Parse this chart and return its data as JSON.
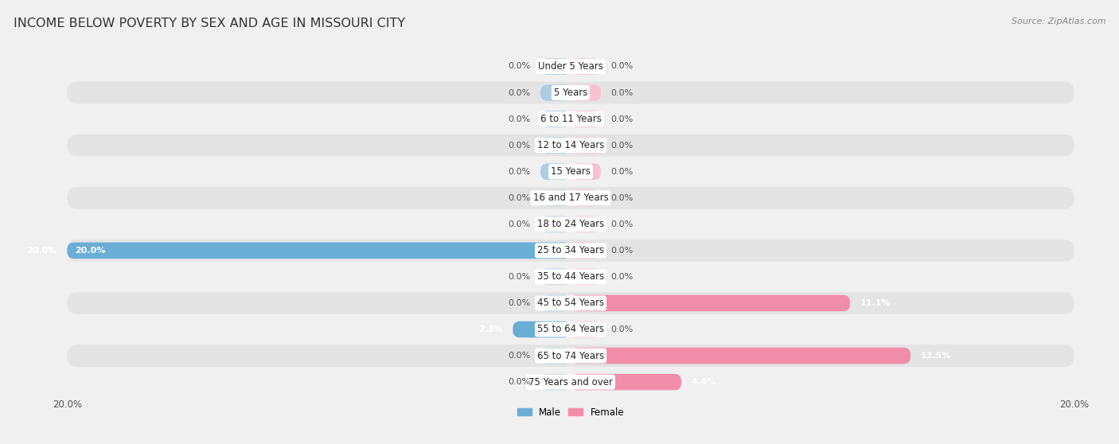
{
  "title": "INCOME BELOW POVERTY BY SEX AND AGE IN MISSOURI CITY",
  "source": "Source: ZipAtlas.com",
  "categories": [
    "Under 5 Years",
    "5 Years",
    "6 to 11 Years",
    "12 to 14 Years",
    "15 Years",
    "16 and 17 Years",
    "18 to 24 Years",
    "25 to 34 Years",
    "35 to 44 Years",
    "45 to 54 Years",
    "55 to 64 Years",
    "65 to 74 Years",
    "75 Years and over"
  ],
  "male_values": [
    0.0,
    0.0,
    0.0,
    0.0,
    0.0,
    0.0,
    0.0,
    20.0,
    0.0,
    0.0,
    2.3,
    0.0,
    0.0
  ],
  "female_values": [
    0.0,
    0.0,
    0.0,
    0.0,
    0.0,
    0.0,
    0.0,
    0.0,
    0.0,
    11.1,
    0.0,
    13.5,
    4.4
  ],
  "male_color": "#6aaed6",
  "female_color": "#f18dab",
  "male_color_light": "#aecde3",
  "female_color_light": "#f8c0d0",
  "row_bg_light": "#f0f0f0",
  "row_bg_dark": "#e4e4e4",
  "figure_bg": "#f0f0f0",
  "max_value": 20.0,
  "stub_value": 1.2,
  "title_fontsize": 11.5,
  "label_fontsize": 8.5,
  "value_fontsize": 8.0,
  "tick_fontsize": 8.5,
  "source_fontsize": 8.0
}
